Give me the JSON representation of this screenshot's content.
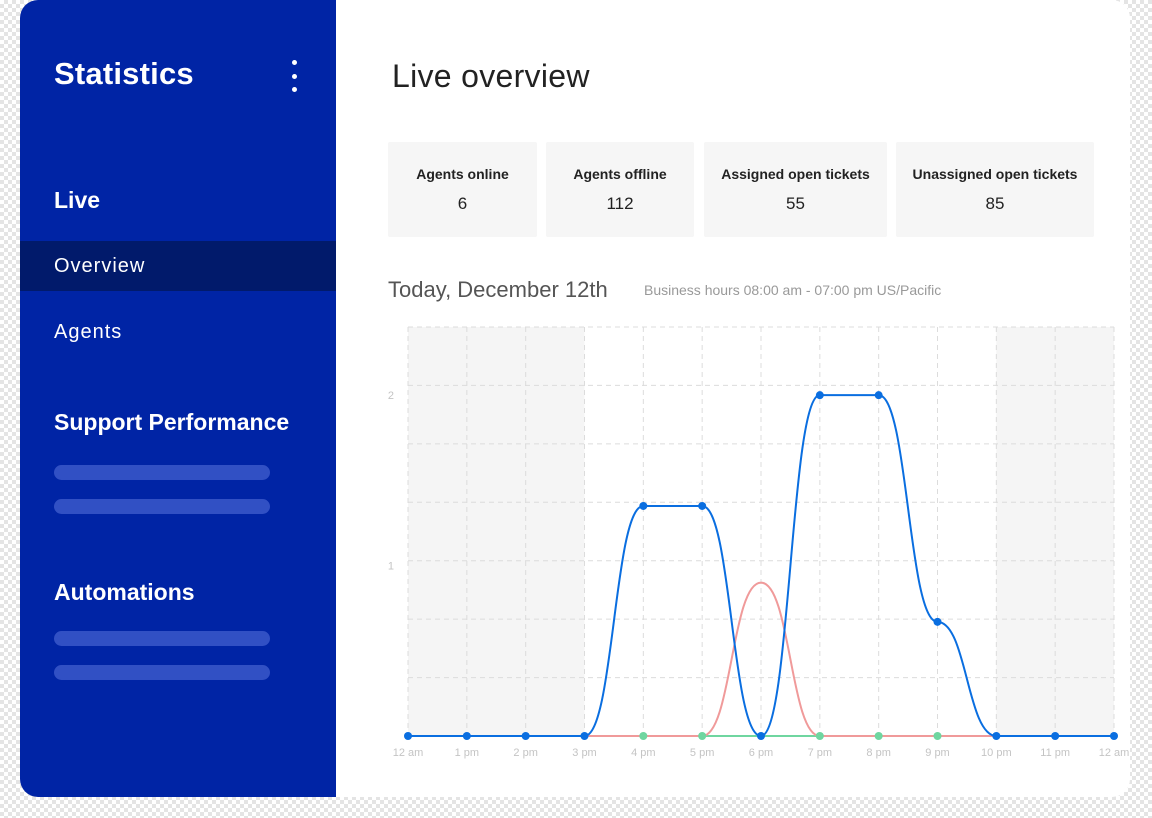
{
  "sidebar": {
    "title": "Statistics",
    "sections": {
      "live": "Live",
      "support_performance": "Support Performance",
      "automations": "Automations"
    },
    "items": [
      {
        "label": "Overview",
        "active": true
      },
      {
        "label": "Agents",
        "active": false
      }
    ]
  },
  "main": {
    "title": "Live overview",
    "stats": [
      {
        "label": "Agents online",
        "value": "6"
      },
      {
        "label": "Agents offline",
        "value": "112"
      },
      {
        "label": "Assigned open tickets",
        "value": "55"
      },
      {
        "label": "Unassigned open tickets",
        "value": "85"
      }
    ],
    "date_title": "Today, December 12th",
    "business_hours": "Business hours 08:00 am - 07:00 pm US/Pacific"
  },
  "colors": {
    "sidebar": "#0024a5",
    "sidebar_active": "#011a6b",
    "series_blue": "#0a6ee0",
    "series_red": "#f09a9a",
    "series_green": "#6fd6a0"
  },
  "chart_data": {
    "type": "line",
    "x": [
      "12 am",
      "1 pm",
      "2 pm",
      "3 pm",
      "4 pm",
      "5 pm",
      "6 pm",
      "7 pm",
      "8 pm",
      "9 pm",
      "10 pm",
      "11 pm",
      "12 am"
    ],
    "yticks": [
      "1",
      "2"
    ],
    "ylim": [
      0,
      2.4
    ],
    "shaded_outside_hours": true,
    "grid": true,
    "series": [
      {
        "color": "#0a6ee0",
        "values": [
          0,
          0,
          0,
          0,
          1.35,
          1.35,
          0,
          2,
          2,
          0.67,
          0,
          0,
          0
        ],
        "markers": true
      },
      {
        "color": "#f09a9a",
        "values": [
          0,
          0,
          0,
          0,
          0,
          0,
          0.9,
          0,
          0,
          0,
          0,
          0,
          0
        ],
        "markers": false
      },
      {
        "color": "#6fd6a0",
        "values": [
          0,
          0,
          0,
          0,
          0,
          0,
          0,
          0,
          0,
          0,
          0,
          0,
          0
        ],
        "markers": true
      }
    ]
  }
}
